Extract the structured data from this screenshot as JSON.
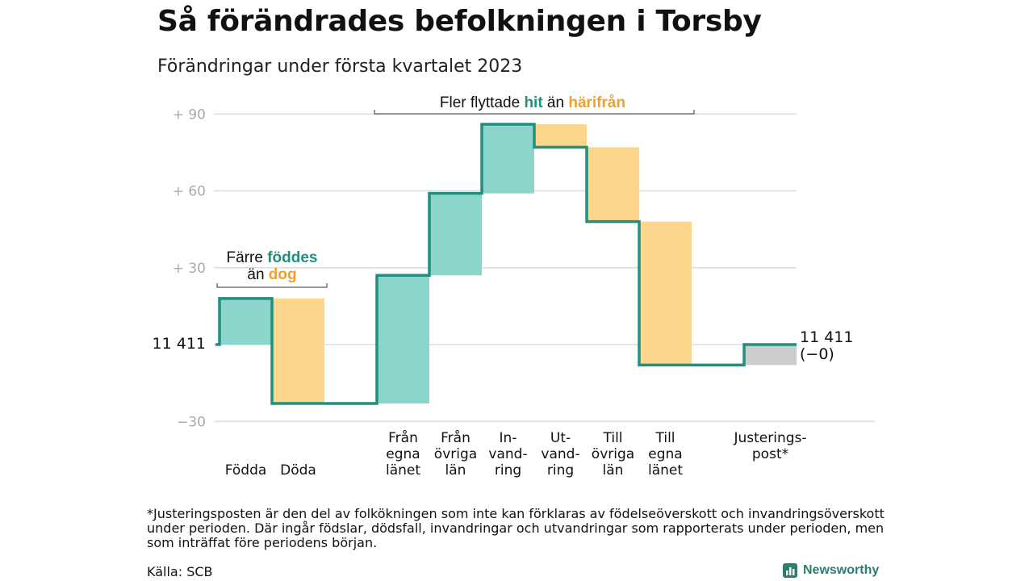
{
  "title": "Så förändrades befolkningen i Torsby",
  "subtitle": "Förändringar under första kvartalet 2023",
  "chart_data": {
    "type": "waterfall",
    "baseline_value": 11411,
    "baseline_label": "11 411",
    "end_label_line1": "11 411",
    "end_label_line2": "(−0)",
    "y_ticks": [
      {
        "value": 90,
        "label": "+ 90"
      },
      {
        "value": 60,
        "label": "+ 60"
      },
      {
        "value": 30,
        "label": "+ 30"
      },
      {
        "value": -30,
        "label": "−30"
      }
    ],
    "ylim": [
      -30,
      90
    ],
    "steps": [
      {
        "label": [
          "",
          "",
          "Födda"
        ],
        "start": 0,
        "end": 18,
        "kind": "teal"
      },
      {
        "label": [
          "",
          "",
          "Döda"
        ],
        "start": 18,
        "end": -23,
        "kind": "yellow"
      },
      {
        "label": [
          "Från",
          "egna",
          "länet"
        ],
        "start": -23,
        "end": 27,
        "kind": "teal"
      },
      {
        "label": [
          "Från",
          "övriga",
          "län"
        ],
        "start": 27,
        "end": 59,
        "kind": "teal"
      },
      {
        "label": [
          "In-",
          "vand-",
          "ring"
        ],
        "start": 59,
        "end": 86,
        "kind": "teal"
      },
      {
        "label": [
          "Ut-",
          "vand-",
          "ring"
        ],
        "start": 86,
        "end": 77,
        "kind": "yellow"
      },
      {
        "label": [
          "Till",
          "övriga",
          "län"
        ],
        "start": 77,
        "end": 48,
        "kind": "yellow"
      },
      {
        "label": [
          "Till",
          "egna",
          "länet"
        ],
        "start": 48,
        "end": -8,
        "kind": "yellow"
      },
      {
        "label": [
          "Justerings-",
          "post*",
          ""
        ],
        "start": -8,
        "end": 0,
        "kind": "grey"
      }
    ],
    "annotations": {
      "births": {
        "line1_pre": "Färre ",
        "line1_hl": "föddes",
        "line2_pre": "än ",
        "line2_hl": "dog"
      },
      "migration": {
        "pre": "Fler flyttade ",
        "hl1": "hit",
        "mid": " än ",
        "hl2": "härifrån"
      }
    },
    "colors": {
      "teal": "#8dd5cb",
      "yellow": "#fbd68c",
      "grey": "#cccccc",
      "line": "#1f9080",
      "teal_text": "#1f9080",
      "orange_text": "#f0a030",
      "grid": "#dcdcdc",
      "tick": "#aaaaaa"
    }
  },
  "footnote": "*Justeringsposten är den del av folkökningen som inte kan förklaras av födelseöverskott och invandringsöverskott under perioden. Där ingår födslar, dödsfall, invandringar och utvandringar som rapporterats under perioden, men som inträffat före periodens början.",
  "source": "Källa: SCB",
  "logo_text": "Newsworthy"
}
